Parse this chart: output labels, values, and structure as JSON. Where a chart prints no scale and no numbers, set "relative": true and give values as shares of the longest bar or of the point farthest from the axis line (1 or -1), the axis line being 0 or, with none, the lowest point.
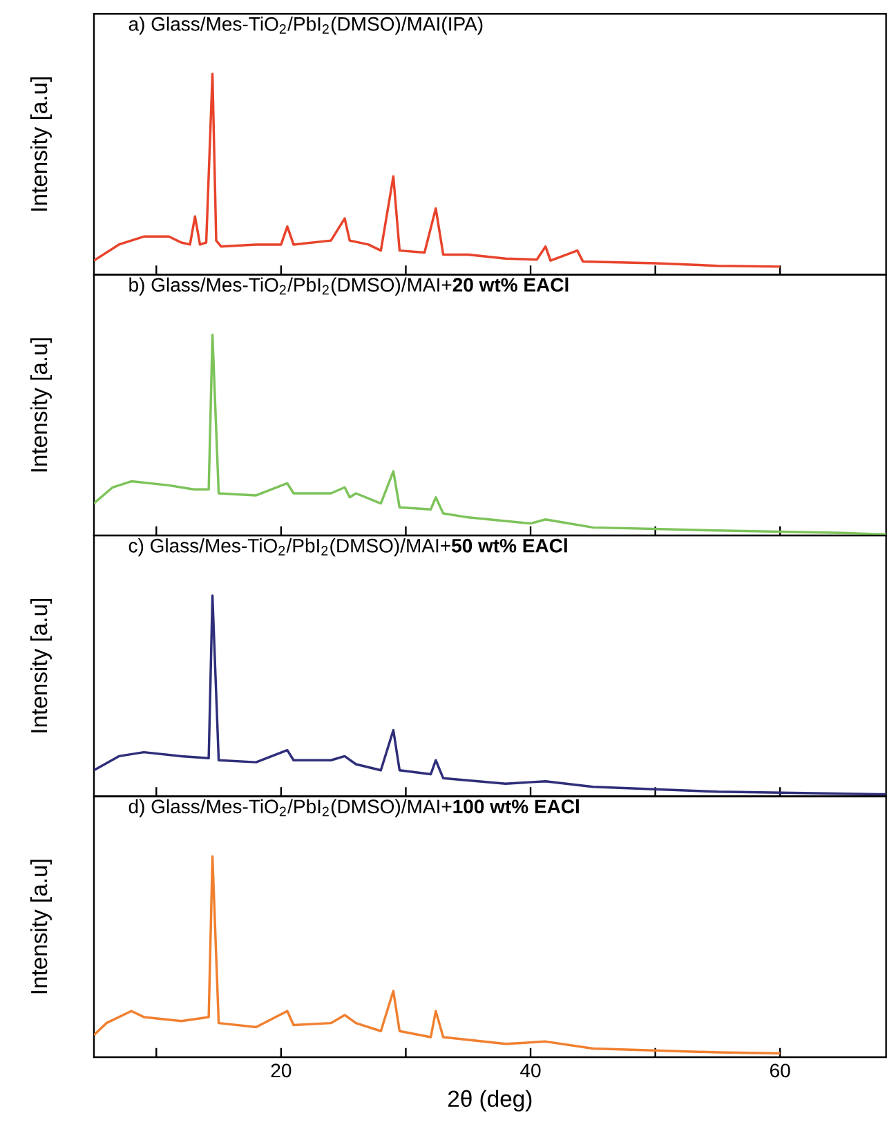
{
  "chart_data": [
    {
      "type": "line",
      "title": "a) Glass/Mes-TiO$_{2}$/PbI$_{2}$(DMSO)/MAI(IPA)",
      "ylabel": "Intensity [a.u]",
      "relative": true,
      "tick_labels": false,
      "xlim": [
        5,
        68.5
      ],
      "xticks": [
        {
          "value": 10,
          "label": null
        },
        {
          "value": 20,
          "label": null
        },
        {
          "value": 30,
          "label": null
        },
        {
          "value": 40,
          "label": null
        },
        {
          "value": 50,
          "label": null
        },
        {
          "value": 60,
          "label": null
        }
      ],
      "series": [
        {
          "color": "#e8432b",
          "x": [
            5,
            7,
            9,
            11,
            12,
            12.7,
            13.1,
            13.5,
            14.0,
            14.5,
            14.8,
            15.2,
            18,
            20,
            20.5,
            21,
            24,
            25.1,
            25.5,
            27,
            28,
            29.0,
            29.5,
            31.5,
            32.4,
            33,
            35,
            38,
            40.5,
            41.2,
            41.6,
            43.75,
            44.2,
            50,
            55,
            60
          ],
          "values": [
            0.07,
            0.15,
            0.19,
            0.19,
            0.16,
            0.15,
            0.29,
            0.15,
            0.16,
            1.0,
            0.17,
            0.14,
            0.15,
            0.15,
            0.24,
            0.15,
            0.17,
            0.28,
            0.17,
            0.15,
            0.12,
            0.49,
            0.12,
            0.11,
            0.33,
            0.1,
            0.1,
            0.08,
            0.075,
            0.14,
            0.07,
            0.12,
            0.065,
            0.057,
            0.044,
            0.04
          ]
        }
      ]
    },
    {
      "type": "line",
      "title": "b) Glass/Mes-TiO$_{2}$/PbI$_{2}$(DMSO)/MAI+**20 wt% EACl**",
      "ylabel": "Intensity [a.u]",
      "relative": true,
      "tick_labels": false,
      "xlim": [
        5,
        68.5
      ],
      "xticks": [
        {
          "value": 10,
          "label": null
        },
        {
          "value": 20,
          "label": null
        },
        {
          "value": 30,
          "label": null
        },
        {
          "value": 40,
          "label": null
        },
        {
          "value": 50,
          "label": null
        },
        {
          "value": 60,
          "label": null
        }
      ],
      "series": [
        {
          "color": "#7dc35a",
          "x": [
            5,
            6.5,
            8,
            11,
            13,
            14.2,
            14.5,
            15,
            18,
            20.5,
            21,
            24,
            25.1,
            25.5,
            26,
            28,
            29.0,
            29.5,
            32,
            32.4,
            33,
            35,
            40,
            41.2,
            45,
            55,
            65,
            68.5
          ],
          "values": [
            0.16,
            0.24,
            0.27,
            0.25,
            0.23,
            0.23,
            1.0,
            0.21,
            0.2,
            0.26,
            0.21,
            0.21,
            0.24,
            0.19,
            0.21,
            0.16,
            0.32,
            0.14,
            0.13,
            0.19,
            0.11,
            0.09,
            0.06,
            0.08,
            0.04,
            0.025,
            0.013,
            0.005
          ]
        }
      ]
    },
    {
      "type": "line",
      "title": "c) Glass/Mes-TiO$_{2}$/PbI$_{2}$(DMSO)/MAI+**50 wt% EACl**",
      "ylabel": "Intensity [a.u]",
      "relative": true,
      "tick_labels": false,
      "xlim": [
        5,
        68.5
      ],
      "xticks": [
        {
          "value": 10,
          "label": null
        },
        {
          "value": 20,
          "label": null
        },
        {
          "value": 30,
          "label": null
        },
        {
          "value": 40,
          "label": null
        },
        {
          "value": 50,
          "label": null
        },
        {
          "value": 60,
          "label": null
        }
      ],
      "series": [
        {
          "color": "#2e2e7a",
          "x": [
            5,
            7,
            9,
            12,
            14.2,
            14.5,
            15,
            18,
            20.5,
            21,
            24,
            25.1,
            26,
            28,
            29.0,
            29.5,
            32,
            32.4,
            33,
            38,
            41.2,
            45,
            55,
            68.5
          ],
          "values": [
            0.13,
            0.2,
            0.22,
            0.2,
            0.19,
            1.0,
            0.18,
            0.17,
            0.23,
            0.18,
            0.18,
            0.2,
            0.16,
            0.13,
            0.33,
            0.13,
            0.11,
            0.18,
            0.09,
            0.063,
            0.075,
            0.047,
            0.023,
            0.01
          ]
        }
      ]
    },
    {
      "type": "line",
      "title": "d) Glass/Mes-TiO$_{2}$/PbI$_{2}$(DMSO)/MAI+**100 wt% EACl**",
      "ylabel": "Intensity [a.u]",
      "xlabel": "2θ (deg)",
      "relative": true,
      "tick_labels": "x",
      "xlim": [
        5,
        68.5
      ],
      "xticks": [
        {
          "value": 10,
          "label": null
        },
        20,
        {
          "value": 30,
          "label": null
        },
        40,
        {
          "value": 50,
          "label": null
        },
        60
      ],
      "series": [
        {
          "color": "#f08030",
          "x": [
            5,
            6,
            8,
            9,
            12,
            14.2,
            14.5,
            15,
            18,
            20.5,
            21,
            24,
            25.1,
            26,
            28,
            29.0,
            29.5,
            32,
            32.4,
            33,
            38,
            41.2,
            45,
            55,
            60
          ],
          "values": [
            0.11,
            0.17,
            0.23,
            0.2,
            0.18,
            0.2,
            1.0,
            0.17,
            0.15,
            0.23,
            0.16,
            0.17,
            0.21,
            0.17,
            0.13,
            0.33,
            0.13,
            0.1,
            0.23,
            0.1,
            0.066,
            0.078,
            0.043,
            0.024,
            0.019
          ]
        }
      ]
    }
  ]
}
